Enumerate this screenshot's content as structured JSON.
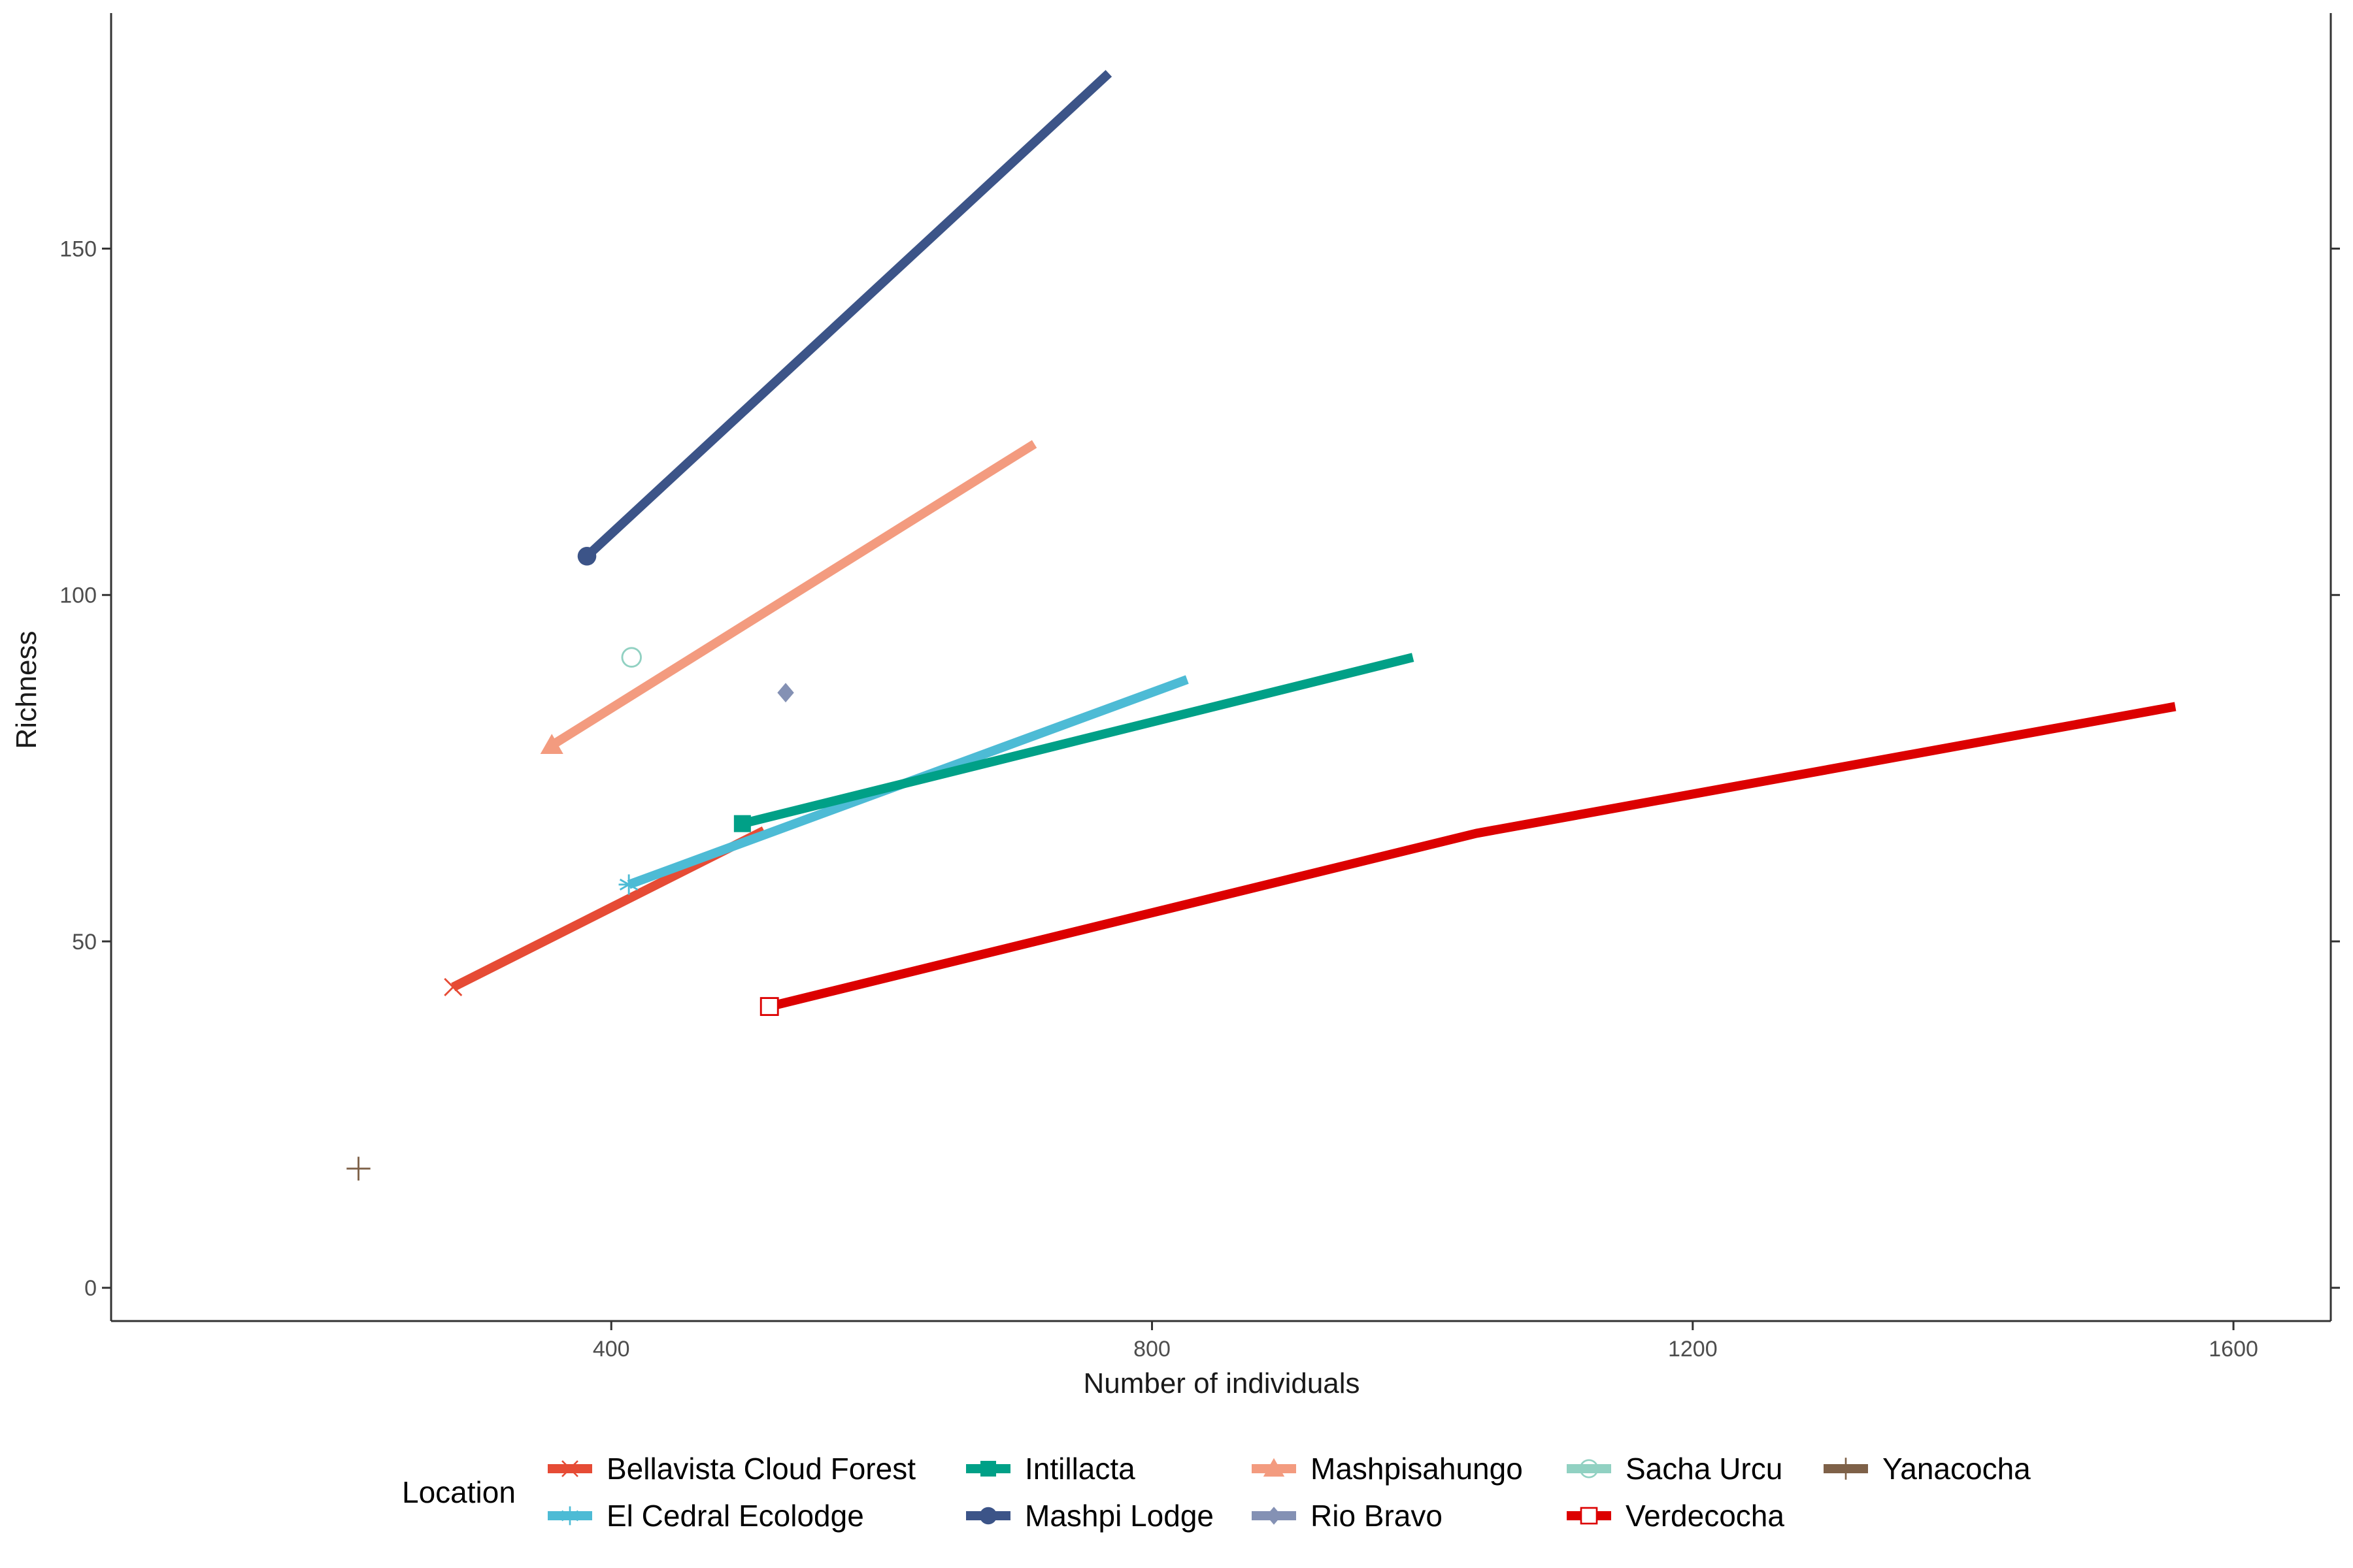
{
  "chart_data": {
    "type": "line",
    "xlabel": "Number of individuals",
    "ylabel": "Richness",
    "xlim": [
      30,
      1672
    ],
    "ylim": [
      -4.8,
      184
    ],
    "xticks": [
      400,
      800,
      1200,
      1600
    ],
    "yticks": [
      0,
      50,
      100,
      150
    ],
    "grid": false,
    "legend": {
      "title": "Location",
      "position": "bottom"
    },
    "series": [
      {
        "name": "Bellavista Cloud Forest",
        "color": "#e64b35",
        "marker": "x",
        "points": [
          {
            "x": 283,
            "y": 43.4
          },
          {
            "x": 513,
            "y": 66
          }
        ]
      },
      {
        "name": "El Cedral Ecolodge",
        "color": "#4dbbd5",
        "marker": "asterisk",
        "points": [
          {
            "x": 413,
            "y": 58.2
          },
          {
            "x": 826,
            "y": 87.8
          }
        ]
      },
      {
        "name": "Intillacta",
        "color": "#00a087",
        "marker": "square",
        "points": [
          {
            "x": 497,
            "y": 67
          },
          {
            "x": 993,
            "y": 91
          }
        ]
      },
      {
        "name": "Mashpi Lodge",
        "color": "#3c5488",
        "marker": "circle",
        "points": [
          {
            "x": 382,
            "y": 105.6
          },
          {
            "x": 768,
            "y": 175.3
          }
        ]
      },
      {
        "name": "Mashpisahungo",
        "color": "#f39b7f",
        "marker": "triangle",
        "points": [
          {
            "x": 356,
            "y": 78.3
          },
          {
            "x": 713,
            "y": 121.8
          }
        ]
      },
      {
        "name": "Rio Bravo",
        "color": "#8491b4",
        "marker": "diamond",
        "points": [
          {
            "x": 529,
            "y": 85.9
          }
        ]
      },
      {
        "name": "Sacha Urcu",
        "color": "#91d1c2",
        "marker": "circle-open",
        "points": [
          {
            "x": 415,
            "y": 91
          }
        ]
      },
      {
        "name": "Verdecocha",
        "color": "#dc0000",
        "marker": "square-open",
        "points": [
          {
            "x": 517,
            "y": 40.6
          },
          {
            "x": 1040,
            "y": 65.6
          },
          {
            "x": 1557,
            "y": 83.9
          }
        ]
      },
      {
        "name": "Yanacocha",
        "color": "#7e6148",
        "marker": "plus",
        "points": [
          {
            "x": 213,
            "y": 17.2
          }
        ]
      }
    ]
  }
}
